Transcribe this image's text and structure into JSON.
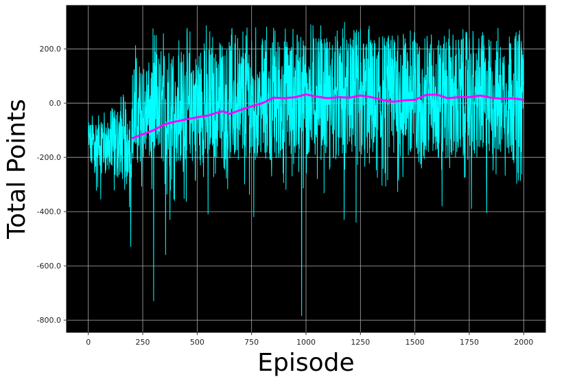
{
  "chart_data": {
    "type": "line",
    "title": "",
    "xlabel": "Episode",
    "ylabel": "Total Points",
    "xlim": [
      -100,
      2100
    ],
    "ylim": [
      -845,
      360
    ],
    "xticks": [
      0,
      250,
      500,
      750,
      1000,
      1250,
      1500,
      1750,
      2000
    ],
    "xtick_labels": [
      "0",
      "250",
      "500",
      "750",
      "1000",
      "1250",
      "1500",
      "1750",
      "2000"
    ],
    "yticks": [
      200,
      0,
      -200,
      -400,
      -600,
      -800
    ],
    "ytick_labels": [
      "200.0",
      "0.0",
      "-200.0",
      "-400.0",
      "-600.0",
      "-800.0"
    ],
    "grid": true,
    "background": "#000000",
    "series": [
      {
        "role": "per-episode total points",
        "color": "#00ffff",
        "episodes": [
          0,
          2000
        ],
        "segments": [
          {
            "x": [
              0,
              100
            ],
            "mean": -140,
            "low": -260,
            "high": -70,
            "spike_low": -400,
            "spike_high": -20
          },
          {
            "x": [
              100,
              200
            ],
            "mean": -150,
            "low": -280,
            "high": -20,
            "spike_low": -400,
            "spike_high": 45
          },
          {
            "x": [
              200,
              300
            ],
            "mean": -60,
            "low": -220,
            "high": 150,
            "spike_low": -360,
            "spike_high": 280
          },
          {
            "x": [
              300,
              500
            ],
            "mean": -40,
            "low": -220,
            "high": 200,
            "spike_low": -370,
            "spike_high": 280
          },
          {
            "x": [
              500,
              750
            ],
            "mean": -20,
            "low": -210,
            "high": 230,
            "spike_low": -340,
            "spike_high": 290
          },
          {
            "x": [
              750,
              1000
            ],
            "mean": 10,
            "low": -210,
            "high": 240,
            "spike_low": -330,
            "spike_high": 285
          },
          {
            "x": [
              1000,
              1500
            ],
            "mean": 25,
            "low": -210,
            "high": 240,
            "spike_low": -340,
            "spike_high": 300
          },
          {
            "x": [
              1500,
              2000
            ],
            "mean": 25,
            "low": -210,
            "high": 240,
            "spike_low": -300,
            "spike_high": 280
          }
        ],
        "notable_dips": [
          {
            "x": 195,
            "y": -530
          },
          {
            "x": 300,
            "y": -730
          },
          {
            "x": 355,
            "y": -560
          },
          {
            "x": 375,
            "y": -430
          },
          {
            "x": 550,
            "y": -410
          },
          {
            "x": 760,
            "y": -420
          },
          {
            "x": 980,
            "y": -785
          },
          {
            "x": 1175,
            "y": -430
          },
          {
            "x": 1230,
            "y": -440
          },
          {
            "x": 1625,
            "y": -380
          },
          {
            "x": 1760,
            "y": -390
          },
          {
            "x": 1830,
            "y": -405
          }
        ]
      },
      {
        "role": "moving average",
        "color": "#ff00ff",
        "x": [
          200,
          250,
          300,
          350,
          400,
          450,
          500,
          550,
          600,
          620,
          650,
          700,
          750,
          800,
          850,
          900,
          950,
          1000,
          1050,
          1100,
          1150,
          1200,
          1250,
          1300,
          1350,
          1400,
          1450,
          1500,
          1550,
          1600,
          1650,
          1700,
          1750,
          1800,
          1850,
          1900,
          1950,
          2000
        ],
        "y": [
          -130,
          -115,
          -100,
          -78,
          -68,
          -60,
          -52,
          -46,
          -33,
          -30,
          -40,
          -25,
          -12,
          0,
          20,
          18,
          22,
          32,
          24,
          18,
          22,
          20,
          28,
          22,
          12,
          5,
          10,
          12,
          30,
          32,
          18,
          22,
          22,
          28,
          20,
          16,
          18,
          12
        ]
      }
    ]
  }
}
